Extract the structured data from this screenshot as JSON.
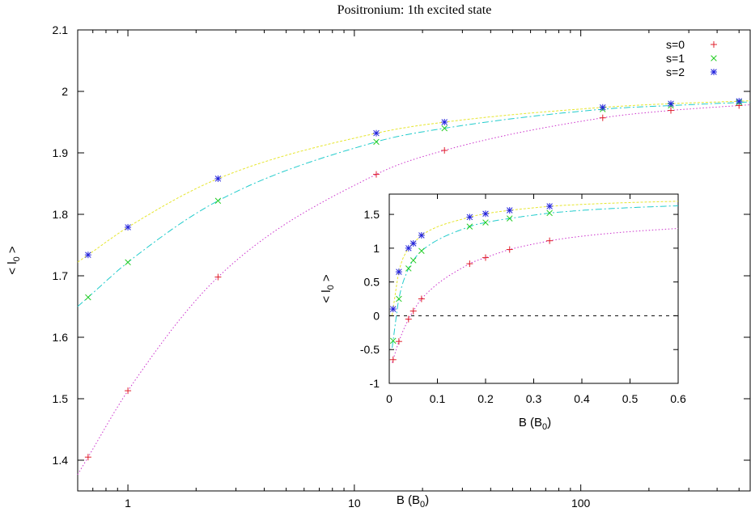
{
  "chart_data": [
    {
      "type": "line",
      "title": "Positronium: 1th excited state",
      "xlabel": "B (B",
      "xlabel_sub": "0",
      "xlabel_end": ")",
      "ylabel": "< l",
      "ylabel_sub": "0",
      "ylabel_end": " >",
      "xscale": "log",
      "xlim": [
        0.6,
        560
      ],
      "ylim": [
        1.35,
        2.1
      ],
      "xticks": [
        1,
        10,
        100
      ],
      "xtick_labels": [
        "1",
        "10",
        "100"
      ],
      "yticks": [
        1.4,
        1.5,
        1.6,
        1.7,
        1.8,
        1.9,
        2.0,
        2.1
      ],
      "ytick_labels": [
        "1.4",
        "1.5",
        "1.6",
        "1.7",
        "1.8",
        "1.9",
        "2",
        "2.1"
      ],
      "grid": false,
      "legend_position": "top-right",
      "series": [
        {
          "name": "s=0",
          "marker": "plus",
          "color": "#e0202c",
          "x": [
            0.667,
            1,
            2.5,
            12.5,
            25,
            125,
            250,
            500
          ],
          "y": [
            1.405,
            1.513,
            1.698,
            1.865,
            1.904,
            1.957,
            1.969,
            1.977
          ],
          "fit_color": "#cc33cc"
        },
        {
          "name": "s=1",
          "marker": "cross",
          "color": "#22cc22",
          "x": [
            0.667,
            1,
            2.5,
            12.5,
            25,
            125,
            250,
            500
          ],
          "y": [
            1.665,
            1.722,
            1.822,
            1.918,
            1.94,
            1.971,
            1.977,
            1.982
          ],
          "fit_color": "#22cccc"
        },
        {
          "name": "s=2",
          "marker": "star",
          "color": "#2222dd",
          "x": [
            0.667,
            1,
            2.5,
            12.5,
            25,
            125,
            250,
            500
          ],
          "y": [
            1.734,
            1.779,
            1.858,
            1.932,
            1.95,
            1.974,
            1.98,
            1.984
          ],
          "fit_color": "#e6e62e"
        }
      ]
    },
    {
      "type": "line",
      "xlabel": "B (B",
      "xlabel_sub": "0",
      "xlabel_end": ")",
      "ylabel": "< l",
      "ylabel_sub": "0",
      "ylabel_end": " >",
      "xlim": [
        0,
        0.6
      ],
      "ylim": [
        -1,
        1.8
      ],
      "xticks": [
        0,
        0.1,
        0.2,
        0.3,
        0.4,
        0.5,
        0.6
      ],
      "xtick_labels": [
        "0",
        "0.1",
        "0.2",
        "0.3",
        "0.4",
        "0.5",
        "0.6"
      ],
      "yticks": [
        -1,
        -0.5,
        0,
        0.5,
        1,
        1.5
      ],
      "ytick_labels": [
        "-1",
        "-0.5",
        "0",
        "0.5",
        "1",
        "1.5"
      ],
      "zero_line": true,
      "series": [
        {
          "name": "s=0",
          "x": [
            0.008,
            0.02,
            0.04,
            0.05,
            0.067,
            0.167,
            0.2,
            0.25,
            0.333
          ],
          "y": [
            -0.65,
            -0.38,
            -0.05,
            0.07,
            0.25,
            0.77,
            0.86,
            0.98,
            1.11
          ]
        },
        {
          "name": "s=1",
          "x": [
            0.008,
            0.02,
            0.04,
            0.05,
            0.067,
            0.167,
            0.2,
            0.25,
            0.333
          ],
          "y": [
            -0.37,
            0.25,
            0.7,
            0.82,
            0.96,
            1.32,
            1.38,
            1.44,
            1.52
          ]
        },
        {
          "name": "s=2",
          "x": [
            0.008,
            0.02,
            0.04,
            0.05,
            0.067,
            0.167,
            0.2,
            0.25,
            0.333
          ],
          "y": [
            0.1,
            0.65,
            1.0,
            1.07,
            1.19,
            1.46,
            1.51,
            1.56,
            1.62
          ]
        }
      ]
    }
  ]
}
